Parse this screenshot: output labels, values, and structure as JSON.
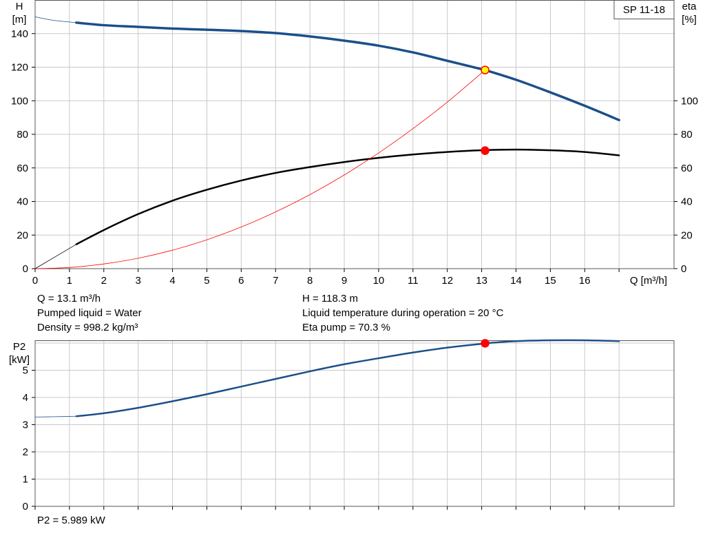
{
  "chart_data": [
    {
      "type": "line",
      "title": "SP 11-18",
      "xlabel": "Q [m³/h]",
      "ylabel": [
        "H",
        "[m]"
      ],
      "ylabel_right": [
        "eta",
        "[%]"
      ],
      "xlim": [
        0,
        18.6
      ],
      "ylim": [
        0,
        160
      ],
      "ylim_right": [
        0,
        160
      ],
      "x_ticks": [
        0,
        1,
        2,
        3,
        4,
        5,
        6,
        7,
        8,
        9,
        10,
        11,
        12,
        13,
        14,
        15,
        16
      ],
      "y_ticks": [
        0,
        20,
        40,
        60,
        80,
        100,
        120,
        140
      ],
      "y_ticks_right": [
        0,
        20,
        40,
        60,
        80,
        100
      ],
      "grid": true,
      "series": [
        {
          "name": "H",
          "axis": "left",
          "color": "#1b4f8a",
          "extrapolated_x": [
            0,
            0.5,
            1.2
          ],
          "extrapolated_y": [
            150,
            148,
            146.5
          ],
          "x": [
            1.2,
            2,
            3,
            4,
            5,
            6,
            7,
            8,
            9,
            10,
            11,
            12,
            13,
            13.1,
            14,
            15,
            16,
            17
          ],
          "y": [
            146.5,
            145,
            144,
            143,
            142.3,
            141.5,
            140.3,
            138.3,
            135.8,
            132.8,
            128.8,
            123.8,
            118.8,
            118.3,
            112.5,
            105,
            97,
            88.5
          ]
        },
        {
          "name": "eta",
          "axis": "right",
          "color": "#000000",
          "extrapolated_x": [
            0,
            1.2
          ],
          "extrapolated_y": [
            0,
            14.5
          ],
          "x": [
            1.2,
            2,
            3,
            4,
            5,
            6,
            7,
            8,
            9,
            10,
            11,
            12,
            13,
            14,
            15,
            16,
            17
          ],
          "y": [
            14.5,
            23,
            32.5,
            40.5,
            47,
            52.5,
            57,
            60.5,
            63.5,
            66,
            68,
            69.5,
            70.5,
            70.9,
            70.5,
            69.5,
            67.5
          ]
        },
        {
          "name": "system curve",
          "axis": "left",
          "color": "#ff0000",
          "x": [
            0,
            1,
            2,
            3,
            4,
            5,
            6,
            7,
            8,
            9,
            10,
            11,
            12,
            13.1
          ],
          "y": [
            0,
            0.7,
            2.8,
            6.2,
            11,
            17.2,
            24.8,
            33.8,
            44.1,
            55.8,
            68.9,
            83.4,
            99.2,
            118.3
          ]
        }
      ],
      "duty_points": [
        {
          "series": "H",
          "x": 13.1,
          "y": 118.3,
          "fill": "#ffff00",
          "stroke": "#ff0000"
        },
        {
          "series": "eta",
          "x": 13.1,
          "y": 70.3,
          "fill": "#ff0000",
          "stroke": "#ff0000"
        }
      ]
    },
    {
      "type": "line",
      "xlabel": "",
      "ylabel": [
        "P2",
        "[kW]"
      ],
      "xlim": [
        0,
        18.6
      ],
      "ylim": [
        0,
        6.1
      ],
      "x_ticks": [
        0,
        1,
        2,
        3,
        4,
        5,
        6,
        7,
        8,
        9,
        10,
        11,
        12,
        13,
        14,
        15,
        16
      ],
      "x_ticks_labeled": false,
      "y_ticks": [
        0,
        1,
        2,
        3,
        4,
        5
      ],
      "grid": true,
      "series": [
        {
          "name": "P2",
          "axis": "left",
          "color": "#1b4f8a",
          "extrapolated_x": [
            0,
            0.5,
            1.2
          ],
          "extrapolated_y": [
            3.28,
            3.29,
            3.31
          ],
          "x": [
            1.2,
            2,
            3,
            4,
            5,
            6,
            7,
            8,
            9,
            10,
            11,
            12,
            13,
            13.1,
            14,
            15,
            16,
            17
          ],
          "y": [
            3.31,
            3.42,
            3.62,
            3.86,
            4.12,
            4.4,
            4.68,
            4.96,
            5.22,
            5.44,
            5.65,
            5.83,
            5.97,
            5.99,
            6.07,
            6.1,
            6.1,
            6.07
          ]
        }
      ],
      "duty_points": [
        {
          "series": "P2",
          "x": 13.1,
          "y": 5.989,
          "fill": "#ff0000",
          "stroke": "#ff0000"
        }
      ]
    }
  ],
  "info": {
    "q": "Q = 13.1 m³/h",
    "h": "H = 118.3 m",
    "liquid": "Pumped liquid = Water",
    "temperature": "Liquid temperature during operation = 20 °C",
    "density": "Density = 998.2 kg/m³",
    "eta_pump": "Eta pump = 70.3 %",
    "p2": "P2 = 5.989 kW"
  }
}
